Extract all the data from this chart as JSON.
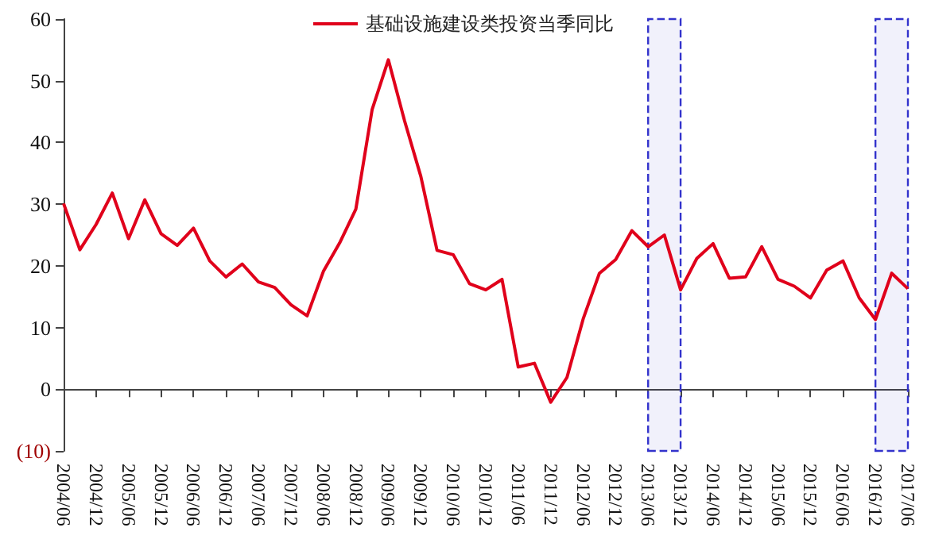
{
  "chart_data": {
    "type": "line",
    "categories": [
      "2004/06",
      null,
      "2004/12",
      null,
      "2005/06",
      null,
      "2005/12",
      null,
      "2006/06",
      null,
      "2006/12",
      null,
      "2007/06",
      null,
      "2007/12",
      null,
      "2008/06",
      null,
      "2008/12",
      null,
      "2009/06",
      null,
      "2009/12",
      null,
      "2010/06",
      null,
      "2010/12",
      null,
      "2011/06",
      null,
      "2011/12",
      null,
      "2012/06",
      null,
      "2012/12",
      null,
      "2013/06",
      null,
      "2013/12",
      null,
      "2014/06",
      null,
      "2014/12",
      null,
      "2015/06",
      null,
      "2015/12",
      null,
      "2016/06",
      null,
      "2016/12",
      null,
      "2017/06"
    ],
    "series": [
      {
        "name": "基础设施建设类投资当季同比",
        "color": "#e0001b",
        "values": [
          30.1,
          22.6,
          26.7,
          31.8,
          24.4,
          30.7,
          25.2,
          23.3,
          26.1,
          20.8,
          18.2,
          20.3,
          17.4,
          16.5,
          13.7,
          11.9,
          19.1,
          23.7,
          29.2,
          45.3,
          53.4,
          43.5,
          34.5,
          22.5,
          21.8,
          17.1,
          16.1,
          17.8,
          3.6,
          4.2,
          -2.1,
          1.9,
          11.4,
          18.8,
          21.0,
          25.7,
          23.1,
          25.0,
          16.1,
          21.2,
          23.6,
          18.0,
          18.2,
          23.1,
          17.8,
          16.7,
          14.8,
          19.3,
          20.8,
          14.8,
          11.3,
          18.8,
          16.3
        ]
      }
    ],
    "ylim": [
      -10,
      60
    ],
    "yticks": [
      {
        "value": -10,
        "label": "(10)"
      },
      0,
      10,
      20,
      30,
      40,
      50,
      60
    ],
    "bands": [
      {
        "axis": "x",
        "from": "2013/06",
        "to": "2013/12",
        "color": "#3333cc"
      },
      {
        "axis": "x",
        "from": "2016/12",
        "to": "2017/06",
        "color": "#3333cc"
      }
    ],
    "legend": "top",
    "marker": "none",
    "line_style": "solid"
  }
}
